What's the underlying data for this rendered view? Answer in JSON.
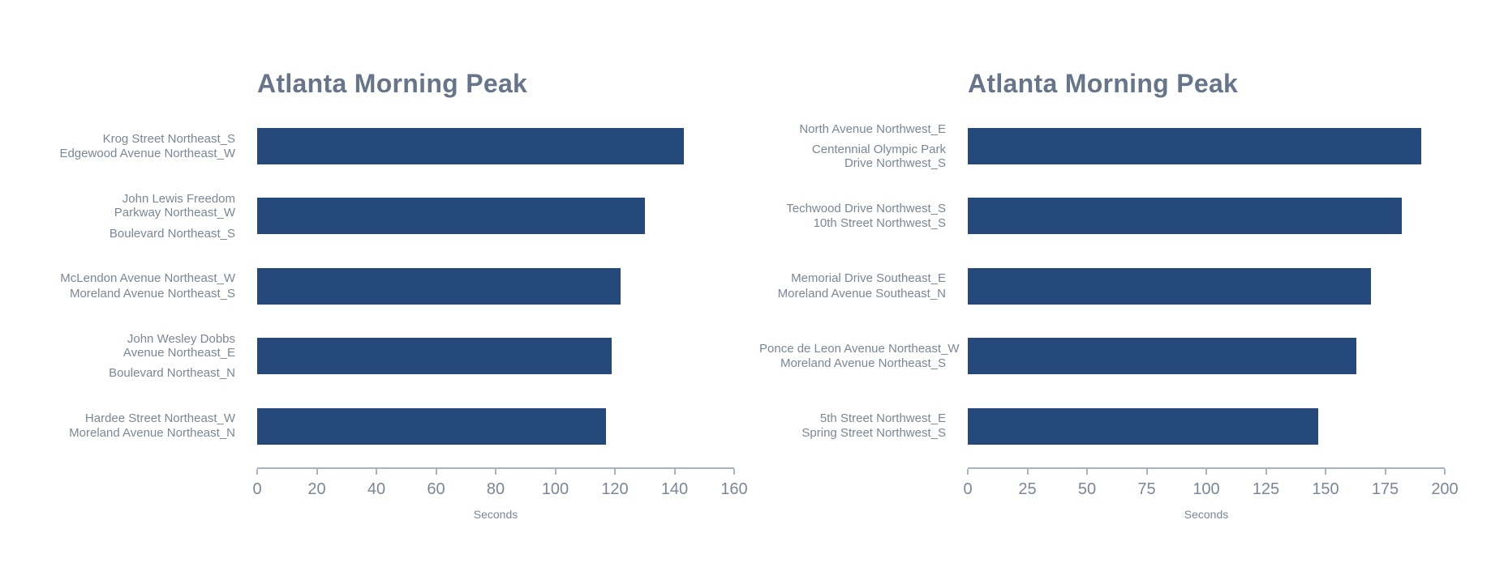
{
  "page": {
    "background_color": "#ffffff"
  },
  "chart_data": [
    {
      "type": "bar",
      "orientation": "horizontal",
      "title": "Atlanta Morning Peak",
      "xlabel": "Seconds",
      "xlim": [
        0,
        160
      ],
      "xticks": [
        0,
        20,
        40,
        60,
        80,
        100,
        120,
        140,
        160
      ],
      "bar_color": "#25497a",
      "axis_color": "#a9b3c1",
      "title_color": "#67758b",
      "label_color": "#7a8796",
      "grid": false,
      "legend": false,
      "row_order": "top-to-bottom",
      "categories": [
        {
          "street": "Krog Street Northeast_S",
          "cross_street": "Edgewood Avenue Northeast_W"
        },
        {
          "street": "John Lewis Freedom Parkway Northeast_W",
          "cross_street": "Boulevard Northeast_S"
        },
        {
          "street": "McLendon Avenue Northeast_W",
          "cross_street": "Moreland Avenue Northeast_S"
        },
        {
          "street": "John Wesley Dobbs Avenue Northeast_E",
          "cross_street": "Boulevard Northeast_N"
        },
        {
          "street": "Hardee Street Northeast_W",
          "cross_street": "Moreland Avenue Northeast_N"
        }
      ],
      "display_lines": [
        [
          [
            "Krog Street Northeast_S"
          ],
          [
            "Edgewood Avenue Northeast_W"
          ]
        ],
        [
          [
            "John Lewis Freedom",
            "Parkway Northeast_W"
          ],
          [
            "Boulevard Northeast_S"
          ]
        ],
        [
          [
            "McLendon Avenue Northeast_W"
          ],
          [
            "Moreland Avenue Northeast_S"
          ]
        ],
        [
          [
            "John Wesley Dobbs",
            "Avenue Northeast_E"
          ],
          [
            "Boulevard Northeast_N"
          ]
        ],
        [
          [
            "Hardee Street Northeast_W"
          ],
          [
            "Moreland Avenue Northeast_N"
          ]
        ]
      ],
      "values": [
        143,
        130,
        122,
        119,
        117
      ]
    },
    {
      "type": "bar",
      "orientation": "horizontal",
      "title": "Atlanta Morning Peak",
      "xlabel": "Seconds",
      "xlim": [
        0,
        200
      ],
      "xticks": [
        0,
        25,
        50,
        75,
        100,
        125,
        150,
        175,
        200
      ],
      "bar_color": "#25497a",
      "axis_color": "#a9b3c1",
      "title_color": "#67758b",
      "label_color": "#7a8796",
      "grid": false,
      "legend": false,
      "row_order": "top-to-bottom",
      "categories": [
        {
          "street": "North Avenue Northwest_E",
          "cross_street": "Centennial Olympic Park Drive Northwest_S"
        },
        {
          "street": "Techwood Drive Northwest_S",
          "cross_street": "10th Street Northwest_S"
        },
        {
          "street": "Memorial Drive Southeast_E",
          "cross_street": "Moreland Avenue Southeast_N"
        },
        {
          "street": "Ponce de Leon Avenue Northeast_W",
          "cross_street": "Moreland Avenue Northeast_S"
        },
        {
          "street": "5th Street Northwest_E",
          "cross_street": "Spring Street Northwest_S"
        }
      ],
      "display_lines": [
        [
          [
            "North Avenue Northwest_E"
          ],
          [
            "Centennial Olympic Park",
            "Drive Northwest_S"
          ]
        ],
        [
          [
            "Techwood Drive Northwest_S"
          ],
          [
            "10th Street Northwest_S"
          ]
        ],
        [
          [
            "Memorial Drive Southeast_E"
          ],
          [
            "Moreland Avenue Southeast_N"
          ]
        ],
        [
          [
            "Ponce de Leon Avenue Northeast_W"
          ],
          [
            "Moreland Avenue Northeast_S"
          ]
        ],
        [
          [
            "5th Street Northwest_E"
          ],
          [
            "Spring Street Northwest_S"
          ]
        ]
      ],
      "values": [
        190,
        182,
        169,
        163,
        147
      ]
    }
  ]
}
